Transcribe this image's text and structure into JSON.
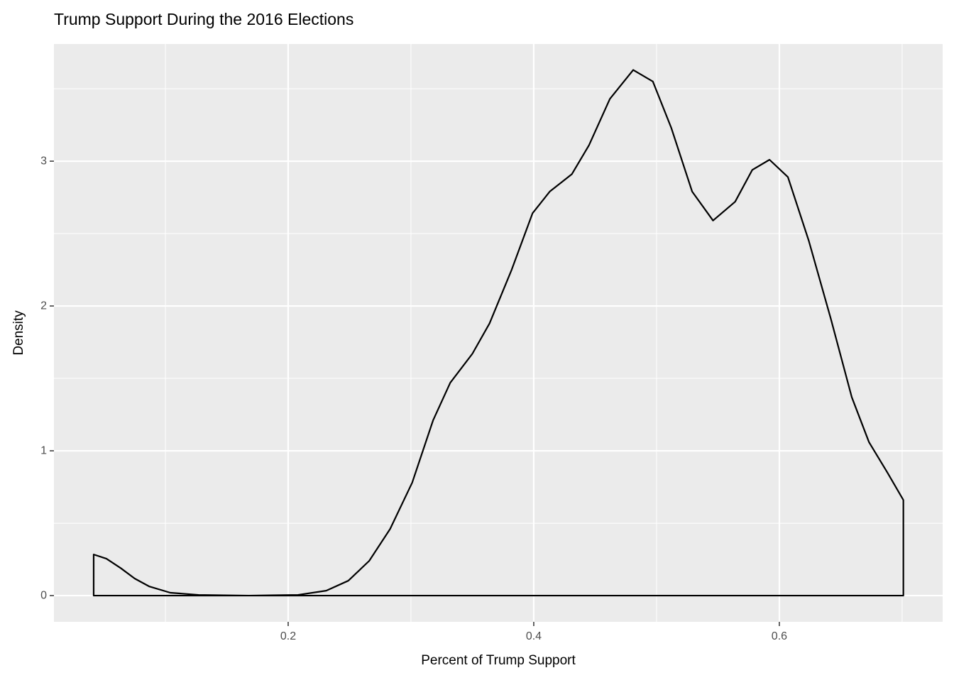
{
  "chart_data": {
    "type": "density",
    "title": "Trump Support During the 2016 Elections",
    "x_label": "Percent of Trump Support",
    "y_label": "Density",
    "xlim": [
      0.00925,
      0.733
    ],
    "ylim": [
      -0.181,
      3.809
    ],
    "xticks": [
      0.2,
      0.4,
      0.6
    ],
    "yticks": [
      0,
      1,
      2,
      3
    ],
    "xminor": [
      0.1,
      0.3,
      0.5,
      0.7
    ],
    "yminor": [
      0.5,
      1.5,
      2.5,
      3.5
    ],
    "grid": true,
    "color": "#000000",
    "panel_color": "#ebebeb",
    "x": [
      0.0416,
      0.052,
      0.0636,
      0.075,
      0.0867,
      0.104,
      0.127,
      0.168,
      0.208,
      0.231,
      0.249,
      0.266,
      0.283,
      0.301,
      0.318,
      0.332,
      0.35,
      0.364,
      0.382,
      0.399,
      0.413,
      0.431,
      0.445,
      0.462,
      0.481,
      0.497,
      0.512,
      0.529,
      0.546,
      0.564,
      0.578,
      0.592,
      0.607,
      0.624,
      0.642,
      0.659,
      0.673,
      0.688,
      0.701
    ],
    "values": [
      0.284,
      0.255,
      0.19,
      0.118,
      0.064,
      0.02,
      0.005,
      0.0,
      0.005,
      0.034,
      0.103,
      0.24,
      0.46,
      0.78,
      1.21,
      1.47,
      1.67,
      1.88,
      2.25,
      2.64,
      2.79,
      2.91,
      3.11,
      3.43,
      3.63,
      3.55,
      3.23,
      2.79,
      2.59,
      2.72,
      2.94,
      3.01,
      2.89,
      2.45,
      1.91,
      1.37,
      1.06,
      0.85,
      0.66
    ]
  }
}
